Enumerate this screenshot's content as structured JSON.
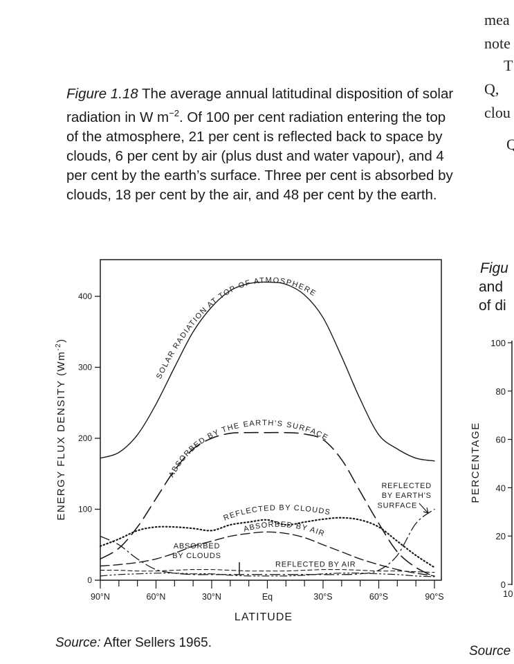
{
  "right_column_text": [
    "mea",
    "note",
    "T",
    "Q,",
    "clou",
    "Q"
  ],
  "caption": {
    "label": "Figure 1.18",
    "text": "The average annual latitudinal disposition of solar radiation in W m",
    "superscript": "−2",
    "text2": ". Of 100 per cent radiation entering the top of the atmosphere, 21 per cent is reflected back to space by clouds, 6 per cent by air (plus dust and water vapour), and 4 per cent by the earth’s surface. Three per cent is absorbed by clouds, 18 per cent by the air, and 48 per cent by the earth."
  },
  "source": {
    "label": "Source:",
    "text": "After Sellers 1965."
  },
  "right_figure": {
    "caption_lines": [
      "Figu",
      "and",
      "of di"
    ],
    "ylabel": "PERCENTAGE",
    "ticks": [
      "100",
      "80",
      "60",
      "40",
      "20",
      "0"
    ],
    "xtick_first": "10",
    "source": "Source"
  },
  "chart_data": {
    "type": "line",
    "xlabel": "LATITUDE",
    "ylabel": "ENERGY FLUX DENSITY (Wm",
    "ylabel_sup": "-2",
    "ylabel_end": ")",
    "xlim": [
      90,
      -90
    ],
    "ylim": [
      0,
      450
    ],
    "y_ticks": [
      0,
      100,
      200,
      300,
      400
    ],
    "x_tick_labels": [
      {
        "lat": 90,
        "label": "90°N"
      },
      {
        "lat": 60,
        "label": "60°N"
      },
      {
        "lat": 30,
        "label": "30°N"
      },
      {
        "lat": 0,
        "label": "Eq"
      },
      {
        "lat": -30,
        "label": "30°S"
      },
      {
        "lat": -60,
        "label": "60°S"
      },
      {
        "lat": -90,
        "label": "90°S"
      }
    ],
    "series": [
      {
        "name": "SOLAR RADIATION AT TOP OF ATMOSPHERE",
        "style": "solid",
        "points": [
          [
            90,
            172
          ],
          [
            80,
            180
          ],
          [
            70,
            205
          ],
          [
            60,
            248
          ],
          [
            50,
            300
          ],
          [
            40,
            350
          ],
          [
            30,
            385
          ],
          [
            20,
            408
          ],
          [
            10,
            418
          ],
          [
            0,
            420
          ],
          [
            -10,
            417
          ],
          [
            -20,
            402
          ],
          [
            -30,
            370
          ],
          [
            -40,
            315
          ],
          [
            -50,
            255
          ],
          [
            -60,
            205
          ],
          [
            -70,
            185
          ],
          [
            -80,
            172
          ],
          [
            -90,
            168
          ]
        ]
      },
      {
        "name": "ABSORBED BY THE EARTH'S SURFACE",
        "style": "longdash",
        "points": [
          [
            90,
            30
          ],
          [
            80,
            45
          ],
          [
            70,
            75
          ],
          [
            60,
            115
          ],
          [
            50,
            155
          ],
          [
            40,
            185
          ],
          [
            30,
            200
          ],
          [
            20,
            207
          ],
          [
            10,
            208
          ],
          [
            0,
            208
          ],
          [
            -10,
            208
          ],
          [
            -20,
            206
          ],
          [
            -30,
            198
          ],
          [
            -40,
            170
          ],
          [
            -50,
            125
          ],
          [
            -60,
            80
          ],
          [
            -70,
            40
          ],
          [
            -80,
            18
          ],
          [
            -90,
            5
          ]
        ]
      },
      {
        "name": "REFLECTED BY CLOUDS",
        "style": "dotted",
        "points": [
          [
            90,
            48
          ],
          [
            80,
            58
          ],
          [
            70,
            70
          ],
          [
            60,
            75
          ],
          [
            50,
            75
          ],
          [
            40,
            73
          ],
          [
            30,
            70
          ],
          [
            20,
            78
          ],
          [
            10,
            82
          ],
          [
            0,
            85
          ],
          [
            -10,
            78
          ],
          [
            -20,
            82
          ],
          [
            -30,
            86
          ],
          [
            -40,
            88
          ],
          [
            -50,
            85
          ],
          [
            -60,
            75
          ],
          [
            -70,
            55
          ],
          [
            -80,
            35
          ],
          [
            -90,
            18
          ]
        ]
      },
      {
        "name": "ABSORBED BY AIR",
        "style": "dash",
        "points": [
          [
            90,
            20
          ],
          [
            80,
            22
          ],
          [
            70,
            25
          ],
          [
            60,
            30
          ],
          [
            50,
            38
          ],
          [
            40,
            48
          ],
          [
            30,
            55
          ],
          [
            20,
            62
          ],
          [
            10,
            66
          ],
          [
            0,
            68
          ],
          [
            -10,
            66
          ],
          [
            -20,
            60
          ],
          [
            -30,
            50
          ],
          [
            -40,
            40
          ],
          [
            -50,
            30
          ],
          [
            -60,
            22
          ],
          [
            -70,
            15
          ],
          [
            -80,
            10
          ],
          [
            -90,
            6
          ]
        ]
      },
      {
        "name": "REFLECTED BY EARTH'S SURFACE",
        "style": "dashdot",
        "points": [
          [
            90,
            62
          ],
          [
            80,
            50
          ],
          [
            70,
            30
          ],
          [
            60,
            15
          ],
          [
            50,
            10
          ],
          [
            40,
            8
          ],
          [
            30,
            8
          ],
          [
            20,
            8
          ],
          [
            10,
            8
          ],
          [
            0,
            8
          ],
          [
            -10,
            8
          ],
          [
            -20,
            8
          ],
          [
            -30,
            8
          ],
          [
            -40,
            8
          ],
          [
            -50,
            9
          ],
          [
            -60,
            14
          ],
          [
            -70,
            35
          ],
          [
            -80,
            80
          ],
          [
            -90,
            100
          ]
        ]
      },
      {
        "name": "ABSORBED BY CLOUDS",
        "style": "dashdotdot",
        "points": [
          [
            90,
            6
          ],
          [
            80,
            8
          ],
          [
            70,
            9
          ],
          [
            60,
            10
          ],
          [
            50,
            10
          ],
          [
            40,
            9
          ],
          [
            30,
            9
          ],
          [
            20,
            7
          ],
          [
            10,
            6
          ],
          [
            0,
            6
          ],
          [
            -10,
            6
          ],
          [
            -20,
            7
          ],
          [
            -30,
            9
          ],
          [
            -40,
            10
          ],
          [
            -50,
            10
          ],
          [
            -60,
            9
          ],
          [
            -70,
            8
          ],
          [
            -80,
            6
          ],
          [
            -90,
            5
          ]
        ]
      },
      {
        "name": "REFLECTED BY AIR",
        "style": "shortdash",
        "points": [
          [
            90,
            14
          ],
          [
            80,
            14
          ],
          [
            70,
            13
          ],
          [
            60,
            13
          ],
          [
            50,
            14
          ],
          [
            40,
            15
          ],
          [
            30,
            15
          ],
          [
            20,
            14
          ],
          [
            10,
            13
          ],
          [
            0,
            13
          ],
          [
            -10,
            13
          ],
          [
            -20,
            14
          ],
          [
            -30,
            15
          ],
          [
            -40,
            15
          ],
          [
            -50,
            14
          ],
          [
            -60,
            13
          ],
          [
            -70,
            13
          ],
          [
            -80,
            12
          ],
          [
            -90,
            11
          ]
        ]
      }
    ],
    "annotations": [
      {
        "text": "REFLECTED",
        "lat": -75,
        "y": 130
      },
      {
        "text": "BY EARTH'S",
        "lat": -75,
        "y": 116
      },
      {
        "text": "SURFACE",
        "lat": -70,
        "y": 102
      },
      {
        "text": "ABSORBED",
        "lat": 38,
        "y": 45
      },
      {
        "text": "BY CLOUDS",
        "lat": 38,
        "y": 31
      },
      {
        "text": "REFLECTED BY AIR",
        "lat": -26,
        "y": 19
      }
    ]
  }
}
